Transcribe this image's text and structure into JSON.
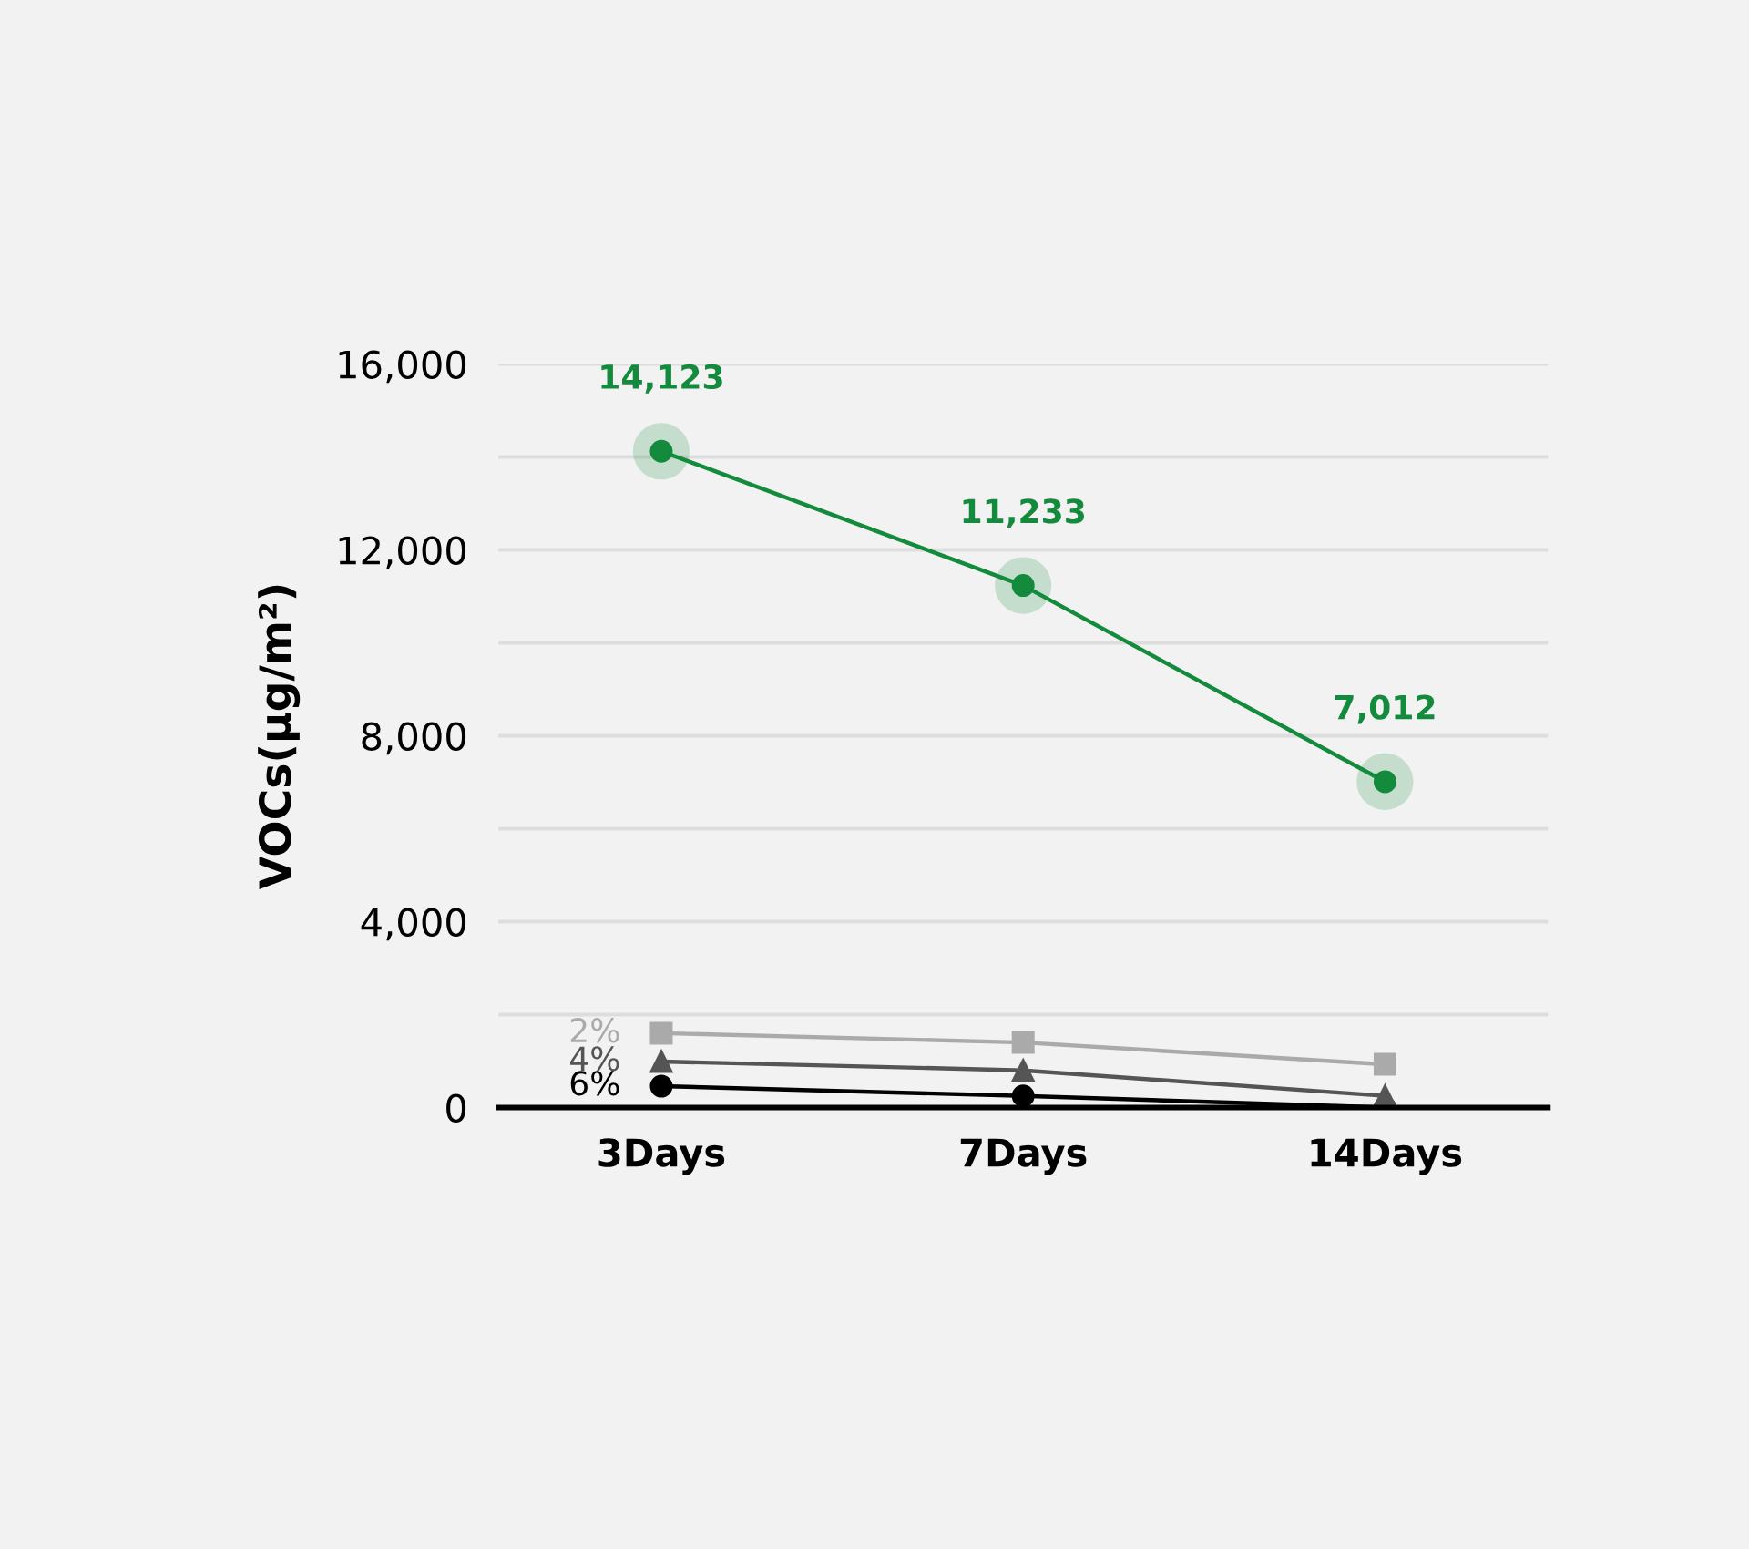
{
  "chart_data": {
    "type": "line",
    "ylabel": "VOCs(μg/m²)",
    "categories": [
      "3Days",
      "7Days",
      "14Days"
    ],
    "ylim": [
      0,
      16000
    ],
    "yticks": [
      0,
      {
        "value": 2000,
        "label": null
      },
      {
        "value": 4000,
        "label": "4,000"
      },
      {
        "value": 6000,
        "label": null
      },
      {
        "value": 8000,
        "label": "8,000"
      },
      {
        "value": 10000,
        "label": null
      },
      {
        "value": 12000,
        "label": "12,000"
      },
      {
        "value": 14000,
        "label": null
      },
      {
        "value": 16000,
        "label": "16,000"
      }
    ],
    "grid": "y",
    "legend": false,
    "series": [
      {
        "name": "2%",
        "color": "#aaaaaa",
        "marker": "square",
        "values": [
          1600,
          1400,
          930
        ]
      },
      {
        "name": "4%",
        "color": "#555555",
        "marker": "triangle",
        "values": [
          990,
          800,
          250
        ]
      },
      {
        "name": "6%",
        "color": "#000000",
        "marker": "circle",
        "values": [
          460,
          250,
          0
        ]
      },
      {
        "color": "#138a3c",
        "marker": "circle",
        "values": [
          14123,
          11233,
          7012
        ],
        "value_labels": [
          "14,123",
          "11,233",
          "7,012"
        ]
      }
    ]
  }
}
